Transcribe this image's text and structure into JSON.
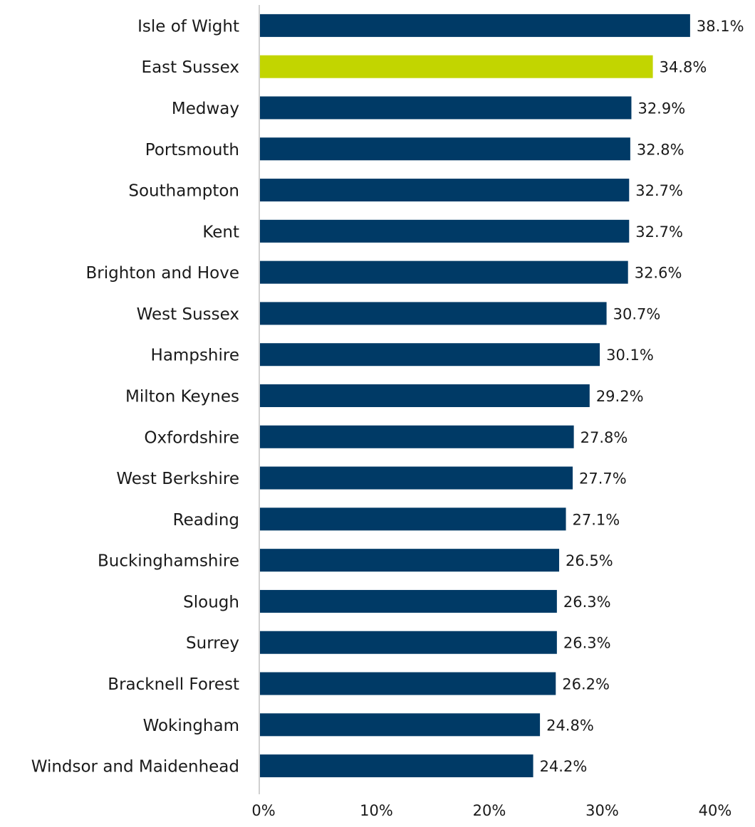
{
  "chart_data": {
    "type": "hbar",
    "categories": [
      "Isle of Wight",
      "East Sussex",
      "Medway",
      "Portsmouth",
      "Southampton",
      "Kent",
      "Brighton and Hove",
      "West Sussex",
      "Hampshire",
      "Milton Keynes",
      "Oxfordshire",
      "West Berkshire",
      "Reading",
      "Buckinghamshire",
      "Slough",
      "Surrey",
      "Bracknell Forest",
      "Wokingham",
      "Windsor and Maidenhead"
    ],
    "values": [
      38.1,
      34.8,
      32.9,
      32.8,
      32.7,
      32.7,
      32.6,
      30.7,
      30.1,
      29.2,
      27.8,
      27.7,
      27.1,
      26.5,
      26.3,
      26.3,
      26.2,
      24.8,
      24.2
    ],
    "value_labels": [
      "38.1%",
      "34.8%",
      "32.9%",
      "32.8%",
      "32.7%",
      "32.7%",
      "32.6%",
      "30.7%",
      "30.1%",
      "29.2%",
      "27.8%",
      "27.7%",
      "27.1%",
      "26.5%",
      "26.3%",
      "26.3%",
      "26.2%",
      "24.8%",
      "24.2%"
    ],
    "colors": [
      "#003a66",
      "#c2d500",
      "#003a66",
      "#003a66",
      "#003a66",
      "#003a66",
      "#003a66",
      "#003a66",
      "#003a66",
      "#003a66",
      "#003a66",
      "#003a66",
      "#003a66",
      "#003a66",
      "#003a66",
      "#003a66",
      "#003a66",
      "#003a66",
      "#003a66"
    ],
    "xlim": [
      0,
      40
    ],
    "xticks": [
      {
        "value": 0,
        "label": "0%"
      },
      {
        "value": 10,
        "label": "10%"
      },
      {
        "value": 20,
        "label": "20%"
      },
      {
        "value": 30,
        "label": "30%"
      },
      {
        "value": 40,
        "label": "40%"
      }
    ],
    "grid": false
  }
}
